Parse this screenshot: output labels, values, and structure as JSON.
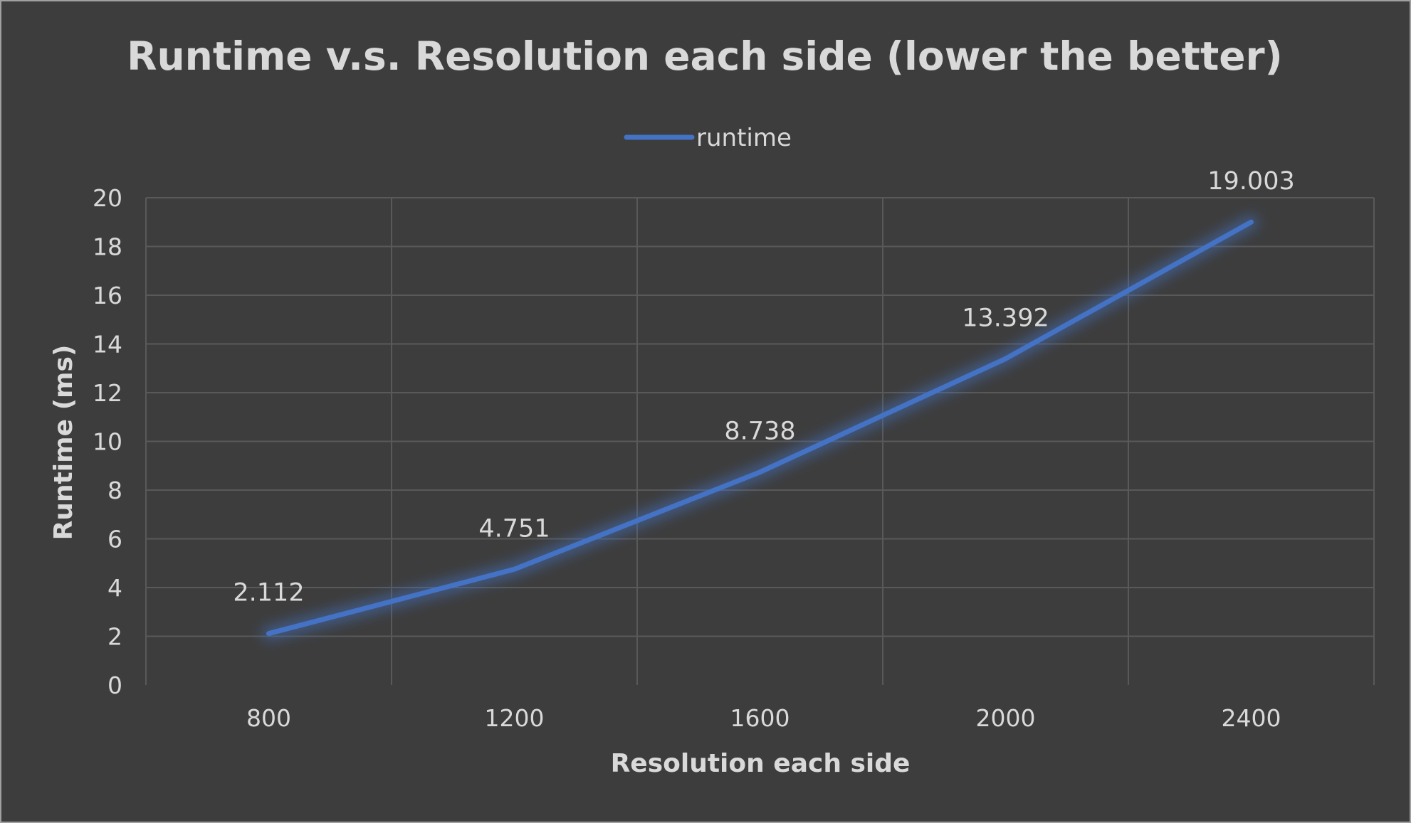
{
  "chart_data": {
    "type": "line",
    "title": "Runtime v.s. Resolution each side (lower the better)",
    "xlabel": "Resolution each side",
    "ylabel": "Runtime (ms)",
    "categories": [
      "800",
      "1200",
      "1600",
      "2000",
      "2400"
    ],
    "series": [
      {
        "name": "runtime",
        "values": [
          2.112,
          4.751,
          8.738,
          13.392,
          19.003
        ],
        "labels": [
          "2.112",
          "4.751",
          "8.738",
          "13.392",
          "19.003"
        ],
        "color": "#4472c4"
      }
    ],
    "ylim": [
      0,
      20
    ],
    "yticks": [
      "0",
      "2",
      "4",
      "6",
      "8",
      "10",
      "12",
      "14",
      "16",
      "18",
      "20"
    ],
    "grid": true,
    "legend": "top-center",
    "colors": {
      "background": "#3d3d3d",
      "text": "#d9d9d9",
      "grid": "#595959",
      "line": "#4472c4"
    }
  }
}
